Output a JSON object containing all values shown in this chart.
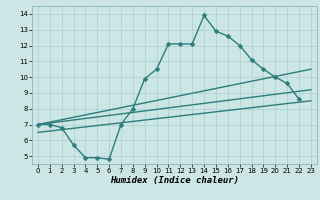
{
  "bg_color": "#cce5e5",
  "line_color": "#2e7d7d",
  "grid_color": "#aacfcf",
  "xlabel": "Humidex (Indice chaleur)",
  "xlim": [
    -0.5,
    23.5
  ],
  "ylim": [
    4.5,
    14.5
  ],
  "xticks": [
    0,
    1,
    2,
    3,
    4,
    5,
    6,
    7,
    8,
    9,
    10,
    11,
    12,
    13,
    14,
    15,
    16,
    17,
    18,
    19,
    20,
    21,
    22,
    23
  ],
  "yticks": [
    5,
    6,
    7,
    8,
    9,
    10,
    11,
    12,
    13,
    14
  ],
  "line1_x": [
    0,
    1,
    2,
    3,
    4,
    5,
    6,
    7,
    8,
    9,
    10,
    11,
    12,
    13,
    14,
    15,
    16,
    17,
    18,
    19,
    20,
    21,
    22
  ],
  "line1_y": [
    7.0,
    7.0,
    6.8,
    5.7,
    4.9,
    4.9,
    4.8,
    7.0,
    8.0,
    9.9,
    10.5,
    12.1,
    12.1,
    12.1,
    13.9,
    12.9,
    12.6,
    12.0,
    11.1,
    10.5,
    10.0,
    9.6,
    8.6
  ],
  "line2_x": [
    0,
    23
  ],
  "line2_y": [
    7.0,
    10.5
  ],
  "line3_x": [
    0,
    23
  ],
  "line3_y": [
    7.0,
    9.2
  ],
  "line4_x": [
    0,
    23
  ],
  "line4_y": [
    6.5,
    8.5
  ],
  "markersize": 2.5,
  "linewidth": 1.0
}
